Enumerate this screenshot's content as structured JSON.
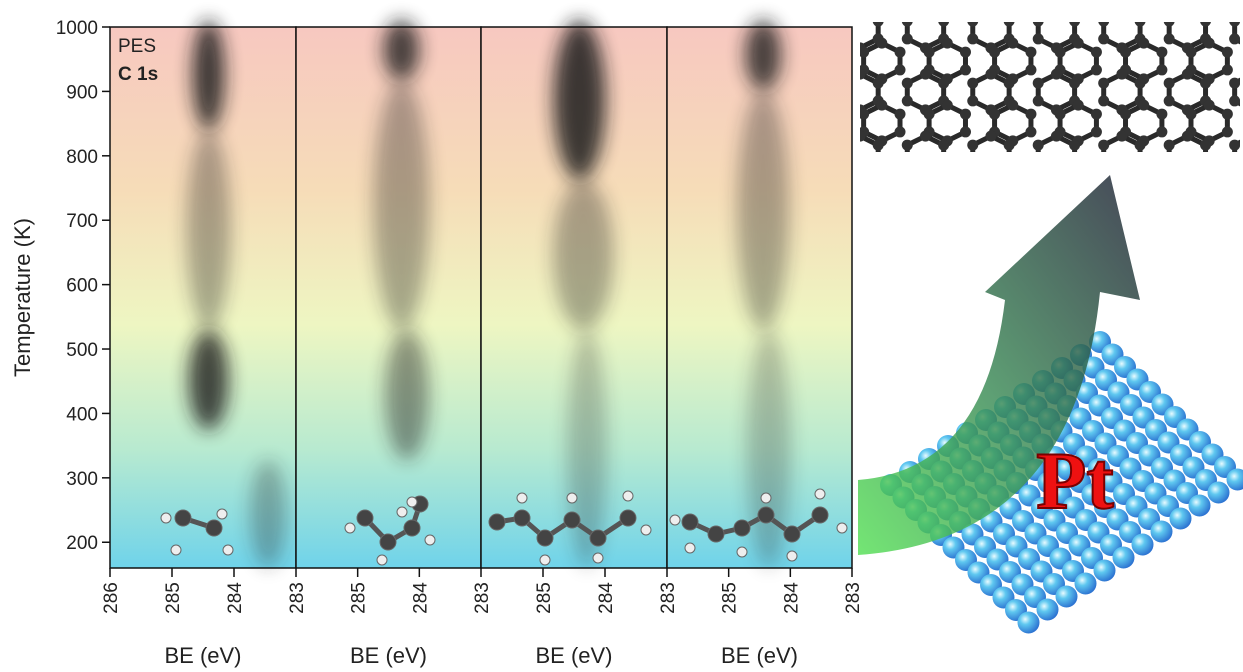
{
  "chart_data": [
    {
      "type": "contour",
      "title": "PES",
      "subtitle": "C 1s",
      "ylabel": "Temperature (K)",
      "xlabel": "BE (eV)",
      "xlim": [
        286,
        283
      ],
      "xticks": [
        286,
        285,
        284,
        283
      ],
      "ylim": [
        160,
        1000
      ],
      "yticks": [
        200,
        300,
        400,
        500,
        600,
        700,
        800,
        900,
        1000
      ]
    },
    {
      "type": "contour",
      "xlabel": "BE (eV)",
      "xlim": [
        286,
        283
      ],
      "xticks": [
        285,
        284,
        283
      ],
      "ylim": [
        160,
        1000
      ]
    },
    {
      "type": "contour",
      "xlabel": "BE (eV)",
      "xlim": [
        286,
        283
      ],
      "xticks": [
        285,
        284,
        283
      ],
      "ylim": [
        160,
        1000
      ]
    },
    {
      "type": "contour",
      "xlabel": "BE (eV)",
      "xlim": [
        286,
        283
      ],
      "xticks": [
        285,
        284,
        283
      ],
      "ylim": [
        160,
        1000
      ]
    }
  ],
  "illustration": {
    "label": "Pt"
  }
}
